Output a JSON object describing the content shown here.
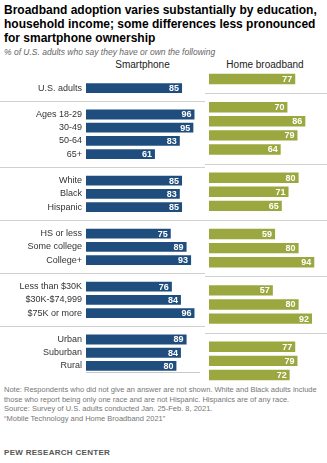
{
  "chart_data": {
    "type": "bar",
    "orientation": "horizontal",
    "title": "Broadband adoption varies substantially by education, household income; some differences less pronounced for smartphone ownership",
    "subtitle": "% of U.S. adults who say they have or own the following",
    "categories": [
      "U.S. adults",
      null,
      "Ages 18-29",
      "30-49",
      "50-64",
      "65+",
      null,
      "White",
      "Black",
      "Hispanic",
      null,
      "HS or less",
      "Some college",
      "College+",
      null,
      "Less than $30K",
      "$30K-$74,999",
      "$75K or more",
      null,
      "Urban",
      "Suburban",
      "Rural"
    ],
    "series": [
      {
        "name": "Smartphone",
        "color": "#1f4e7e",
        "values": [
          85,
          null,
          96,
          95,
          83,
          61,
          null,
          85,
          83,
          85,
          null,
          75,
          89,
          93,
          null,
          76,
          84,
          96,
          null,
          89,
          84,
          80
        ]
      },
      {
        "name": "Home broadband",
        "color": "#9aa83f",
        "values": [
          77,
          null,
          70,
          86,
          79,
          64,
          null,
          80,
          71,
          65,
          null,
          59,
          80,
          94,
          null,
          57,
          80,
          92,
          null,
          77,
          79,
          72
        ]
      }
    ],
    "xlim": [
      0,
      100
    ],
    "grid": false,
    "data_labels": true,
    "tick_labels": "y",
    "note": "Note: Respondents who did not give an answer are not shown. White and Black adults include those who report being only one race and are not Hispanic. Hispanics are of any race.",
    "source": [
      "Source: Survey of U.S. adults conducted Jan. 25-Feb. 8, 2021.",
      "“Mobile Technology and Home Broadband 2021”"
    ],
    "credit": "PEW RESEARCH CENTER"
  }
}
